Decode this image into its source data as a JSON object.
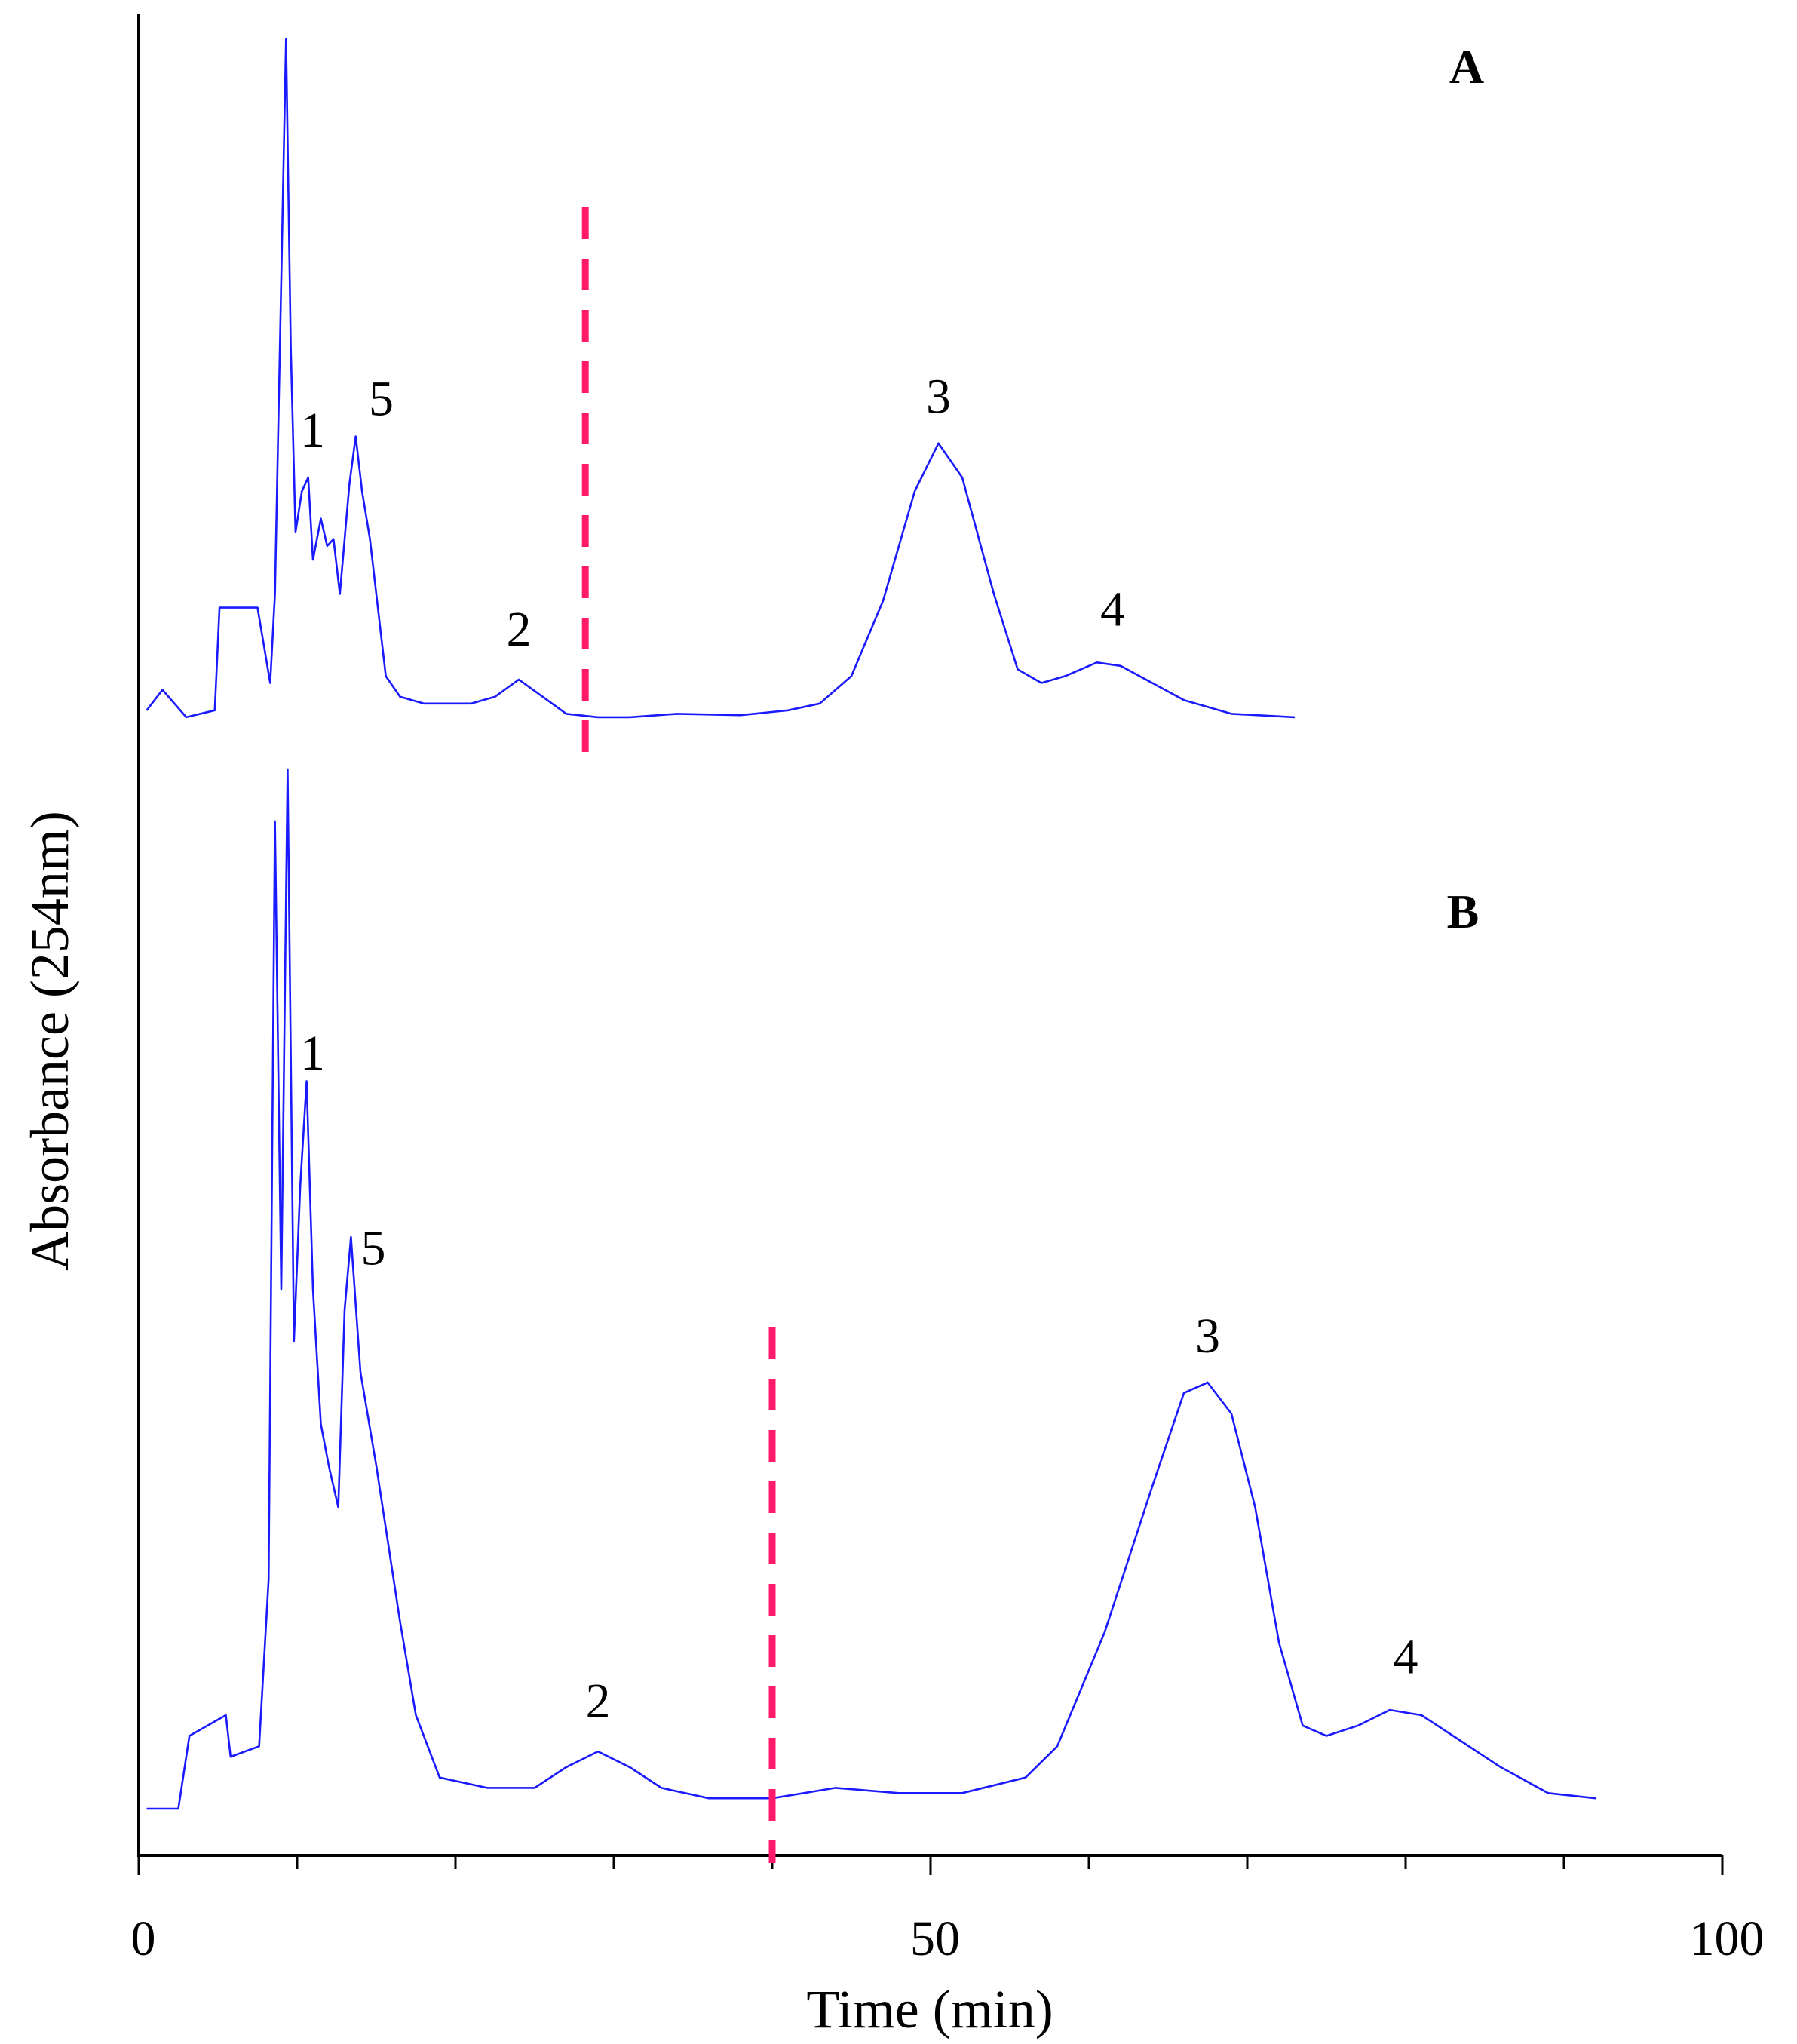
{
  "chart_data": {
    "type": "line",
    "xlabel": "Time (min)",
    "ylabel": "Absorbance (254nm)",
    "xlim": [
      0,
      100
    ],
    "x_ticks": [
      0,
      50,
      100
    ],
    "x_minor_ticks": [
      10,
      20,
      30,
      40,
      60,
      70,
      80,
      90
    ],
    "grid": false,
    "legend": "none",
    "panels": [
      {
        "label": "A",
        "divider_x": 28.2,
        "peaks": [
          {
            "label": "1",
            "x": 10.5
          },
          {
            "label": "5",
            "x": 13.5
          },
          {
            "label": "2",
            "x": 24.0
          },
          {
            "label": "3",
            "x": 50.5
          },
          {
            "label": "4",
            "x": 61.5
          }
        ],
        "series": [
          {
            "values": [
              [
                0.5,
                0.02
              ],
              [
                1.5,
                0.05
              ],
              [
                3,
                0.01
              ],
              [
                4.8,
                0.02
              ],
              [
                5.1,
                0.17
              ],
              [
                7.5,
                0.17
              ],
              [
                8.3,
                0.06
              ],
              [
                8.6,
                0.19
              ],
              [
                9.0,
                0.65
              ],
              [
                9.3,
                1.0
              ],
              [
                9.6,
                0.55
              ],
              [
                9.9,
                0.28
              ],
              [
                10.3,
                0.34
              ],
              [
                10.7,
                0.36
              ],
              [
                11.0,
                0.24
              ],
              [
                11.5,
                0.3
              ],
              [
                11.9,
                0.26
              ],
              [
                12.3,
                0.27
              ],
              [
                12.7,
                0.19
              ],
              [
                13.3,
                0.35
              ],
              [
                13.7,
                0.42
              ],
              [
                14.1,
                0.34
              ],
              [
                14.6,
                0.27
              ],
              [
                15.1,
                0.17
              ],
              [
                15.6,
                0.07
              ],
              [
                16.5,
                0.04
              ],
              [
                18,
                0.03
              ],
              [
                21,
                0.03
              ],
              [
                22.5,
                0.04
              ],
              [
                24,
                0.065
              ],
              [
                25.5,
                0.04
              ],
              [
                27,
                0.015
              ],
              [
                29,
                0.01
              ],
              [
                31,
                0.01
              ],
              [
                34,
                0.015
              ],
              [
                38,
                0.013
              ],
              [
                41,
                0.02
              ],
              [
                43,
                0.03
              ],
              [
                45,
                0.07
              ],
              [
                47,
                0.18
              ],
              [
                49,
                0.34
              ],
              [
                50.5,
                0.41
              ],
              [
                52,
                0.36
              ],
              [
                54,
                0.19
              ],
              [
                55.5,
                0.08
              ],
              [
                57,
                0.06
              ],
              [
                58.5,
                0.07
              ],
              [
                60.5,
                0.09
              ],
              [
                62,
                0.085
              ],
              [
                64,
                0.06
              ],
              [
                66,
                0.035
              ],
              [
                69,
                0.015
              ],
              [
                73,
                0.01
              ]
            ]
          }
        ]
      },
      {
        "label": "B",
        "divider_x": 40.0,
        "peaks": [
          {
            "label": "1",
            "x": 10.5
          },
          {
            "label": "5",
            "x": 13.0
          },
          {
            "label": "2",
            "x": 29.0
          },
          {
            "label": "3",
            "x": 67.5
          },
          {
            "label": "4",
            "x": 80.0
          }
        ],
        "series": [
          {
            "values": [
              [
                0.5,
                0.0
              ],
              [
                2.5,
                0.0
              ],
              [
                3.2,
                0.07
              ],
              [
                5.5,
                0.09
              ],
              [
                5.8,
                0.05
              ],
              [
                7.6,
                0.06
              ],
              [
                8.2,
                0.22
              ],
              [
                8.6,
                0.95
              ],
              [
                9.0,
                0.5
              ],
              [
                9.4,
                1.0
              ],
              [
                9.8,
                0.45
              ],
              [
                10.2,
                0.6
              ],
              [
                10.6,
                0.7
              ],
              [
                11.0,
                0.5
              ],
              [
                11.5,
                0.37
              ],
              [
                12.0,
                0.33
              ],
              [
                12.6,
                0.29
              ],
              [
                13.0,
                0.48
              ],
              [
                13.4,
                0.55
              ],
              [
                14.0,
                0.42
              ],
              [
                15.0,
                0.33
              ],
              [
                16.5,
                0.18
              ],
              [
                17.5,
                0.09
              ],
              [
                19,
                0.03
              ],
              [
                22,
                0.02
              ],
              [
                25,
                0.02
              ],
              [
                27,
                0.04
              ],
              [
                29,
                0.055
              ],
              [
                31,
                0.04
              ],
              [
                33,
                0.02
              ],
              [
                36,
                0.01
              ],
              [
                40,
                0.01
              ],
              [
                44,
                0.02
              ],
              [
                48,
                0.015
              ],
              [
                52,
                0.015
              ],
              [
                56,
                0.03
              ],
              [
                58,
                0.06
              ],
              [
                61,
                0.17
              ],
              [
                64,
                0.31
              ],
              [
                66,
                0.4
              ],
              [
                67.5,
                0.41
              ],
              [
                69,
                0.38
              ],
              [
                70.5,
                0.29
              ],
              [
                72,
                0.16
              ],
              [
                73.5,
                0.08
              ],
              [
                75,
                0.07
              ],
              [
                77,
                0.08
              ],
              [
                79,
                0.095
              ],
              [
                81,
                0.09
              ],
              [
                83,
                0.07
              ],
              [
                86,
                0.04
              ],
              [
                89,
                0.015
              ],
              [
                92,
                0.01
              ]
            ]
          }
        ]
      }
    ]
  }
}
